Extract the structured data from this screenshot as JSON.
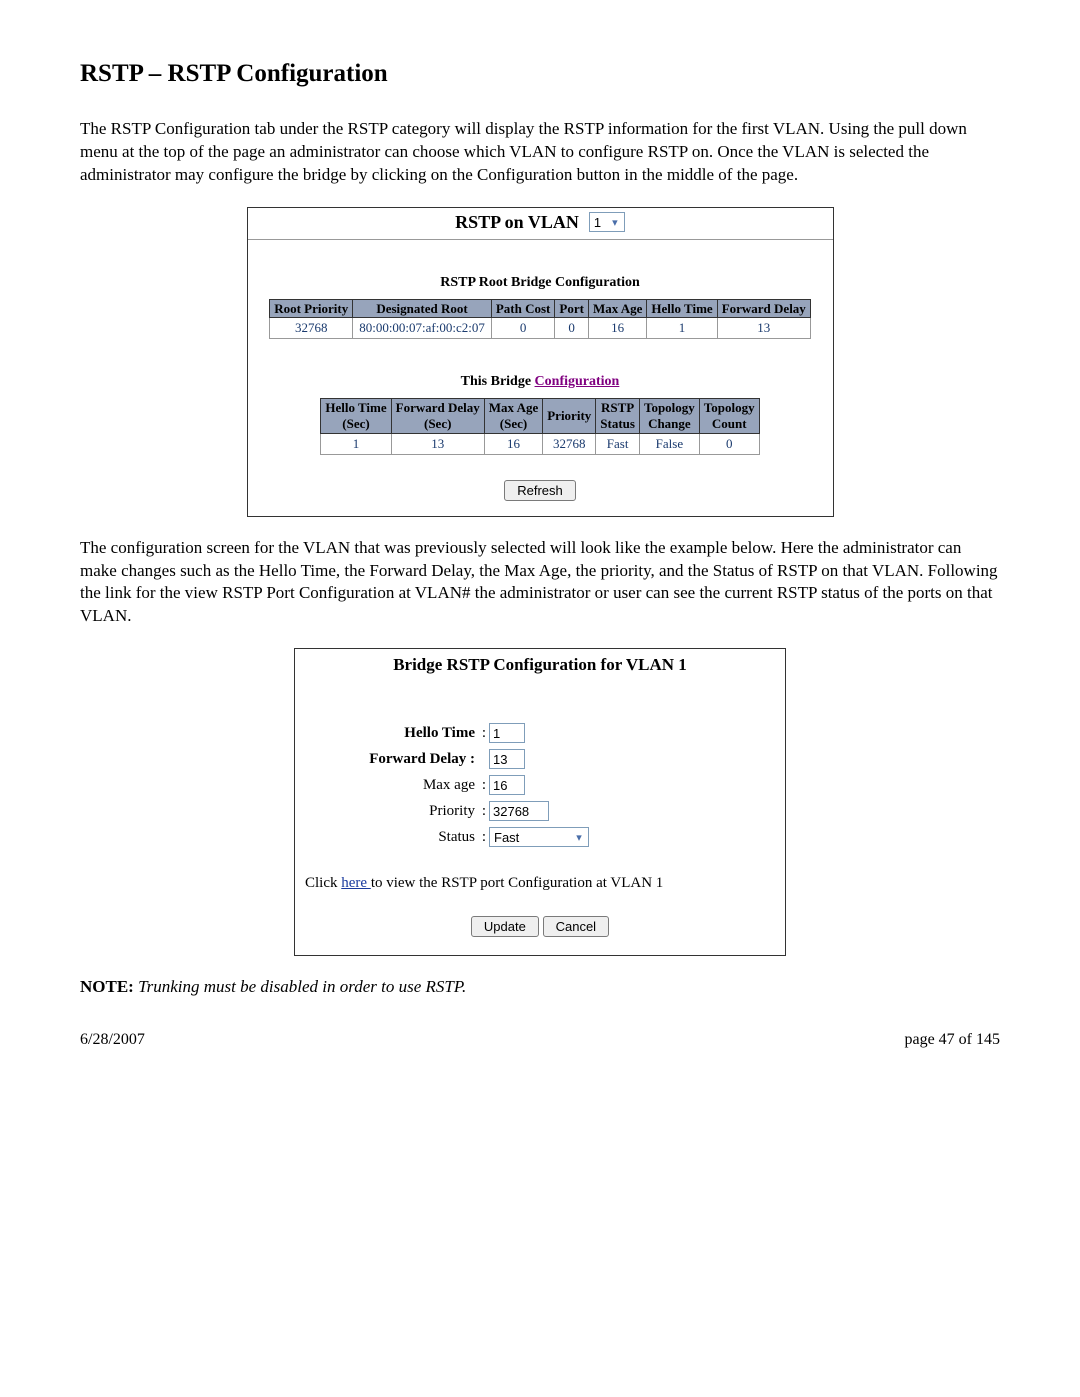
{
  "heading": "RSTP – RSTP Configuration",
  "intro_paragraph": "The RSTP Configuration tab under the RSTP category will display the RSTP information for the first VLAN.  Using the pull down menu at the top of the page an administrator can choose which VLAN to configure RSTP on.  Once the VLAN is selected the administrator may configure the bridge by clicking on the Configuration button in the middle of the page.",
  "panelA": {
    "vlan_label": "RSTP on VLAN",
    "vlan_selected": "1",
    "rootTable": {
      "title": "RSTP Root Bridge Configuration",
      "headers": [
        "Root Priority",
        "Designated Root",
        "Path Cost",
        "Port",
        "Max Age",
        "Hello Time",
        "Forward Delay"
      ],
      "row": [
        "32768",
        "80:00:00:07:af:00:c2:07",
        "0",
        "0",
        "16",
        "1",
        "13"
      ]
    },
    "bridgeTable": {
      "title_prefix": "This Bridge ",
      "title_link": "Configuration",
      "headers_line1": [
        "Hello Time",
        "Forward Delay",
        "Max Age",
        "Priority",
        "RSTP",
        "Topology",
        "Topology"
      ],
      "headers_line2": [
        "(Sec)",
        "(Sec)",
        "(Sec)",
        "",
        "Status",
        "Change",
        "Count"
      ],
      "row": [
        "1",
        "13",
        "16",
        "32768",
        "Fast",
        "False",
        "0"
      ]
    },
    "refresh_label": "Refresh"
  },
  "mid_paragraph": "The configuration screen for the VLAN that was previously selected will look like the example below.  Here the administrator can make changes such as the Hello Time, the Forward Delay, the Max Age, the priority, and the Status of RSTP on that VLAN.  Following the link for the view RSTP Port Configuration at VLAN# the administrator or user can see the current RSTP status of the ports on that VLAN.",
  "panelB": {
    "title": "Bridge RSTP Configuration for VLAN 1",
    "fields": {
      "hello_label": "Hello Time",
      "hello_value": "1",
      "fwd_label": "Forward Delay :",
      "fwd_value": "13",
      "max_label": "Max age",
      "max_value": "16",
      "prio_label": "Priority",
      "prio_value": "32768",
      "status_label": "Status",
      "status_value": "Fast"
    },
    "click_prefix": "Click ",
    "click_link": " here ",
    "click_suffix": " to view the RSTP port Configuration at VLAN 1",
    "update_label": "Update",
    "cancel_label": "Cancel"
  },
  "note_bold": "NOTE:",
  "note_italic": " Trunking must be disabled in order to use RSTP.",
  "footer_date": "6/28/2007",
  "footer_page": "page 47 of 145",
  "colors": {
    "table_header_bg": "#97a4bb",
    "cell_text": "#1a3a6e",
    "visited_link": "#800080",
    "link": "#1a3a9e",
    "input_border": "#7f9db9"
  }
}
